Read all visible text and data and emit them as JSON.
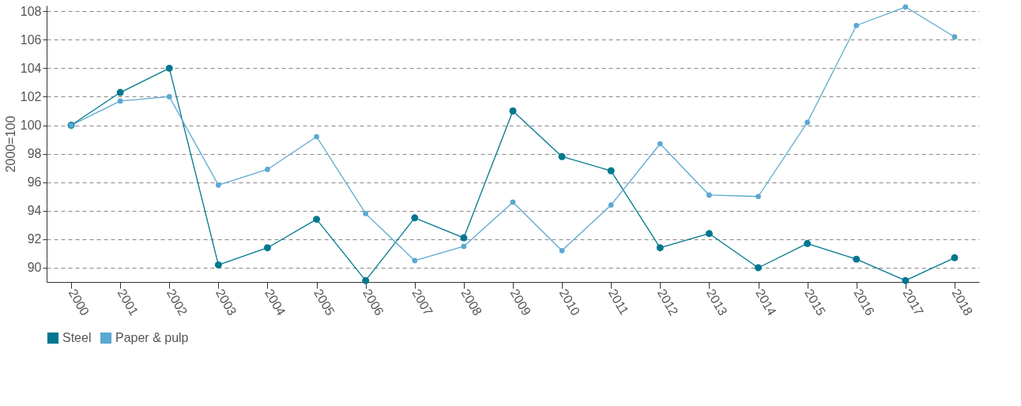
{
  "chart_data": {
    "type": "line",
    "ylabel": "2000=100",
    "categories": [
      "2000",
      "2001",
      "2002",
      "2003",
      "2004",
      "2005",
      "2006",
      "2007",
      "2008",
      "2009",
      "2010",
      "2011",
      "2012",
      "2013",
      "2014",
      "2015",
      "2016",
      "2017",
      "2018"
    ],
    "series": [
      {
        "name": "Steel",
        "color": "#00778f",
        "values": [
          100,
          102.3,
          104.0,
          90.2,
          91.4,
          93.4,
          89.1,
          93.5,
          92.1,
          101.0,
          97.8,
          96.8,
          91.4,
          92.4,
          90.0,
          91.7,
          90.6,
          89.1,
          90.7
        ]
      },
      {
        "name": "Paper & pulp",
        "color": "#5aa9d1",
        "values": [
          100,
          101.7,
          102.0,
          95.8,
          96.9,
          99.2,
          93.8,
          90.5,
          91.5,
          94.6,
          91.2,
          94.4,
          98.7,
          95.1,
          95.0,
          100.2,
          107.0,
          108.3,
          106.2
        ]
      }
    ],
    "ylim": [
      89,
      108.4
    ],
    "yticks": [
      90,
      92,
      94,
      96,
      98,
      100,
      102,
      104,
      106,
      108
    ],
    "grid": "y",
    "legend": "bottom",
    "marker": "circle",
    "line_style": "solid"
  }
}
